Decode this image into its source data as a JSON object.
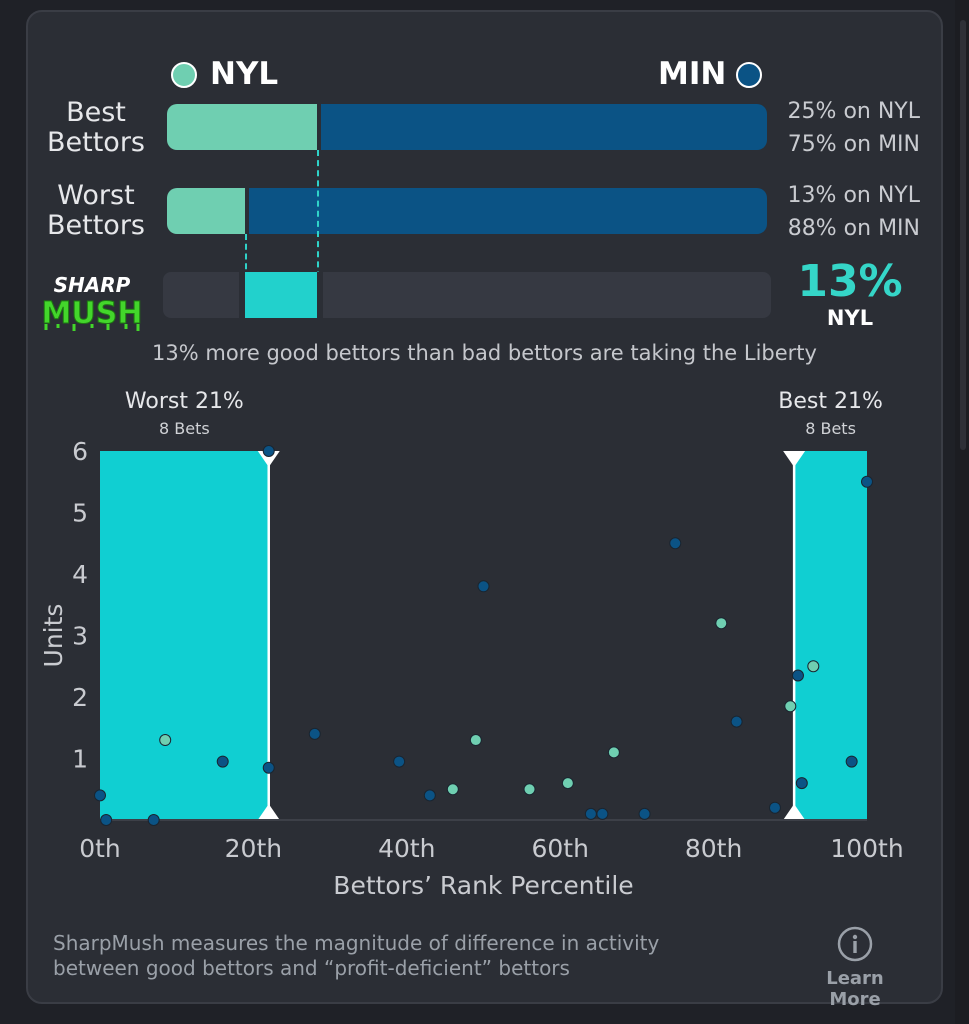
{
  "header": {
    "team_left": {
      "label": "NYL",
      "color": "#6fcfb1"
    },
    "team_right": {
      "label": "MIN",
      "color": "#0b5385"
    }
  },
  "rows": [
    {
      "label_line1": "Best",
      "label_line2": "Bettors",
      "left_share": 0.25,
      "text_left": "25% on NYL",
      "text_right": "75% on MIN"
    },
    {
      "label_line1": "Worst",
      "label_line2": "Bettors",
      "left_share": 0.13,
      "text_left": "13% on NYL",
      "text_right": "88% on MIN"
    }
  ],
  "sharp_mush": {
    "logo_line1": "SHARP",
    "logo_line2": "MUSH",
    "value": "13%",
    "team": "NYL",
    "summary": "13% more good bettors than bad bettors are taking the Liberty"
  },
  "colors": {
    "nyl": "#6fcfb1",
    "min": "#0b5385",
    "accent": "#22d1cc",
    "highlight_band": "#10cfd2",
    "background": "#2b2e35"
  },
  "chart_data": {
    "type": "scatter",
    "xlabel": "Bettors’ Rank Percentile",
    "ylabel": "Units",
    "xlim": [
      0,
      100
    ],
    "ylim": [
      0,
      6
    ],
    "x_ticks": [
      "0th",
      "20th",
      "40th",
      "60th",
      "80th",
      "100th"
    ],
    "y_ticks": [
      "1",
      "2",
      "3",
      "4",
      "5",
      "6"
    ],
    "windows": [
      {
        "title": "Worst 21%",
        "subtitle": "8 Bets",
        "from": 0,
        "to": 22
      },
      {
        "title": "Best 21%",
        "subtitle": "8 Bets",
        "from": 90.5,
        "to": 100
      }
    ],
    "series": [
      {
        "name": "NYL",
        "color": "#6fcfb1",
        "points": [
          [
            8.5,
            1.3
          ],
          [
            49,
            1.3
          ],
          [
            46,
            0.5
          ],
          [
            56,
            0.5
          ],
          [
            61,
            0.6
          ],
          [
            67,
            1.1
          ],
          [
            81,
            3.2
          ],
          [
            90,
            1.85
          ],
          [
            93,
            2.5
          ]
        ]
      },
      {
        "name": "MIN",
        "color": "#0b5385",
        "points": [
          [
            0,
            0.4
          ],
          [
            0.8,
            0
          ],
          [
            7,
            0
          ],
          [
            16,
            0.95
          ],
          [
            22,
            0.85
          ],
          [
            22,
            6.0
          ],
          [
            28,
            1.4
          ],
          [
            39,
            0.95
          ],
          [
            43,
            0.4
          ],
          [
            50,
            3.8
          ],
          [
            64,
            0.1
          ],
          [
            65.5,
            0.1
          ],
          [
            71,
            0.1
          ],
          [
            75,
            4.5
          ],
          [
            83,
            1.6
          ],
          [
            88,
            0.2
          ],
          [
            91,
            2.35
          ],
          [
            91.5,
            0.6
          ],
          [
            98,
            0.95
          ],
          [
            100,
            5.5
          ]
        ]
      }
    ]
  },
  "footer": {
    "line1": "SharpMush measures the magnitude of difference in activity",
    "line2": "between good bettors and “profit-deficient” bettors",
    "learn_more": "Learn More"
  }
}
